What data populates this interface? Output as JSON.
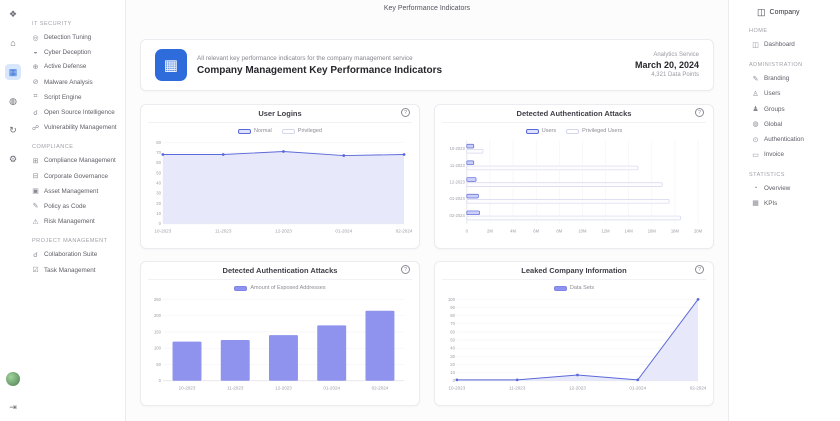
{
  "header": {
    "title": "Key Performance Indicators"
  },
  "left_rail": {
    "top_icons": [
      {
        "name": "app-logo-icon"
      },
      {
        "name": "home-icon"
      },
      {
        "name": "kpi-dashboard-icon",
        "active": true
      },
      {
        "name": "modules-icon"
      },
      {
        "name": "sync-icon"
      },
      {
        "name": "settings-icon"
      }
    ],
    "bottom_icons": [
      {
        "name": "user-avatar"
      },
      {
        "name": "logout-icon"
      }
    ]
  },
  "left_sidebar": {
    "sections": [
      {
        "label": "IT SECURITY",
        "items": [
          {
            "label": "Detection Tuning",
            "icon": "detection-tuning-icon"
          },
          {
            "label": "Cyber Deception",
            "icon": "cyber-deception-icon"
          },
          {
            "label": "Active Defense",
            "icon": "active-defense-icon"
          },
          {
            "label": "Malware Analysis",
            "icon": "malware-analysis-icon"
          },
          {
            "label": "Script Engine",
            "icon": "script-engine-icon"
          },
          {
            "label": "Open Source Intelligence",
            "icon": "osint-icon"
          },
          {
            "label": "Vulnerability Management",
            "icon": "vulnerability-icon"
          }
        ]
      },
      {
        "label": "COMPLIANCE",
        "items": [
          {
            "label": "Compliance Management",
            "icon": "compliance-icon"
          },
          {
            "label": "Corporate Governance",
            "icon": "governance-icon"
          },
          {
            "label": "Asset Management",
            "icon": "asset-icon"
          },
          {
            "label": "Policy as Code",
            "icon": "policy-icon"
          },
          {
            "label": "Risk Management",
            "icon": "risk-icon"
          }
        ]
      },
      {
        "label": "PROJECT MANAGEMENT",
        "items": [
          {
            "label": "Collaboration Suite",
            "icon": "collaboration-icon"
          },
          {
            "label": "Task Management",
            "icon": "task-icon"
          }
        ]
      }
    ]
  },
  "right_sidebar": {
    "company": {
      "label": "Company",
      "icon": "company-icon"
    },
    "sections": [
      {
        "label": "HOME",
        "items": [
          {
            "label": "Dashboard",
            "icon": "dashboard-icon"
          }
        ]
      },
      {
        "label": "ADMINISTRATION",
        "items": [
          {
            "label": "Branding",
            "icon": "branding-icon"
          },
          {
            "label": "Users",
            "icon": "users-icon"
          },
          {
            "label": "Groups",
            "icon": "groups-icon"
          },
          {
            "label": "Global",
            "icon": "global-icon"
          },
          {
            "label": "Authentication",
            "icon": "authentication-icon"
          },
          {
            "label": "Invoice",
            "icon": "invoice-icon"
          }
        ]
      },
      {
        "label": "STATISTICS",
        "items": [
          {
            "label": "Overview",
            "icon": "overview-icon"
          },
          {
            "label": "KPIs",
            "icon": "kpis-icon"
          }
        ]
      }
    ]
  },
  "banner": {
    "subtitle": "All relevant key performance indicators for the company management service",
    "title": "Company Management Key Performance Indicators",
    "service": "Analytics Service",
    "date": "March 20, 2024",
    "data_points": "4,321 Data Points"
  },
  "colors": {
    "accent": "#5b68d8",
    "bar_fill": "#8f93ee",
    "area_fill": "#e7e9fa",
    "hbar_users_fill": "#ccd0f8",
    "hbar_priv_fill": "#fdfdff",
    "hbar_priv_stroke": "#d3d6ee",
    "banner_icon": "#2e6bdb",
    "rail_active_bg": "#d8e7fb"
  },
  "chart_data": [
    {
      "type": "line",
      "title": "User Logins",
      "categories": [
        "10-2023",
        "11-2023",
        "12-2023",
        "01-2024",
        "02-2024"
      ],
      "legend": [
        {
          "label": "Normal",
          "style": "outline-accent"
        },
        {
          "label": "Privileged",
          "style": "outline-light"
        }
      ],
      "series": [
        {
          "name": "Normal",
          "values": [
            68,
            68,
            71,
            67,
            68
          ]
        }
      ],
      "ylim": [
        0,
        80
      ],
      "yticks": [
        0,
        10,
        20,
        30,
        40,
        50,
        60,
        70,
        80
      ],
      "legend_position": "top",
      "grid": true,
      "area": true
    },
    {
      "type": "hbar",
      "title": "Detected Authentication Attacks",
      "categories": [
        "10-2023",
        "11-2023",
        "12-2023",
        "01-2024",
        "02-2024"
      ],
      "legend": [
        {
          "label": "Users",
          "style": "outline-accent"
        },
        {
          "label": "Privileged Users",
          "style": "outline-light"
        }
      ],
      "series": [
        {
          "name": "Users",
          "values": [
            0.6,
            0.6,
            0.8,
            1.0,
            1.1
          ]
        },
        {
          "name": "Privileged Users",
          "values": [
            1.4,
            14.8,
            16.9,
            17.5,
            18.5
          ]
        }
      ],
      "xlim": [
        0,
        20
      ],
      "xticks": [
        {
          "label": "0",
          "value": 0
        },
        {
          "label": "2M",
          "value": 2
        },
        {
          "label": "4M",
          "value": 4
        },
        {
          "label": "6M",
          "value": 6
        },
        {
          "label": "8M",
          "value": 8
        },
        {
          "label": "10M",
          "value": 10
        },
        {
          "label": "12M",
          "value": 12
        },
        {
          "label": "14M",
          "value": 14
        },
        {
          "label": "16M",
          "value": 16
        },
        {
          "label": "18M",
          "value": 18
        },
        {
          "label": "20M",
          "value": 20
        }
      ],
      "unit": "M",
      "legend_position": "top",
      "grid": true
    },
    {
      "type": "bar",
      "title": "Detected Authentication Attacks",
      "categories": [
        "10-2023",
        "11-2023",
        "12-2023",
        "01-2024",
        "02-2024"
      ],
      "legend": [
        {
          "label": "Amount of Exposed Addresses",
          "style": "solid-accent"
        }
      ],
      "series": [
        {
          "name": "Amount of Exposed Addresses",
          "values": [
            120,
            125,
            140,
            170,
            215
          ]
        }
      ],
      "ylim": [
        0,
        250
      ],
      "yticks": [
        0,
        50,
        100,
        150,
        200,
        250
      ],
      "legend_position": "top",
      "grid": true
    },
    {
      "type": "line",
      "title": "Leaked Company Information",
      "categories": [
        "10-2023",
        "11-2023",
        "12-2023",
        "01-2024",
        "02-2024"
      ],
      "legend": [
        {
          "label": "Data Sets",
          "style": "solid-accent"
        }
      ],
      "series": [
        {
          "name": "Data Sets",
          "values": [
            1,
            1,
            7,
            1,
            100
          ]
        }
      ],
      "ylim": [
        0,
        100
      ],
      "yticks": [
        0,
        10,
        20,
        30,
        40,
        50,
        60,
        70,
        80,
        90,
        100
      ],
      "legend_position": "top",
      "grid": true,
      "area": true
    }
  ]
}
